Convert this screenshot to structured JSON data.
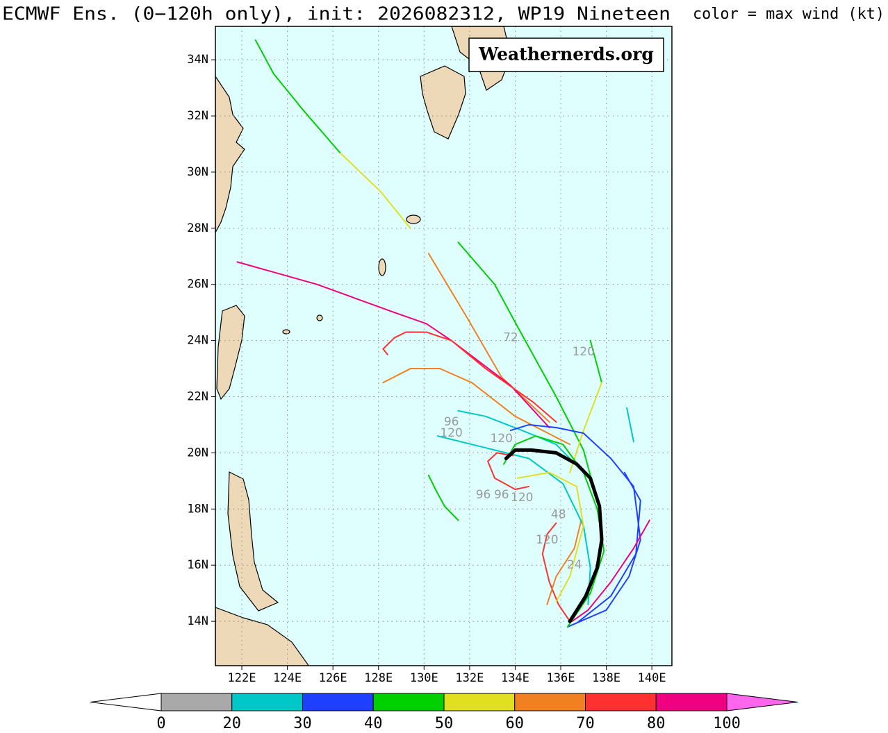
{
  "chart_data": {
    "type": "track-map",
    "title": "ECMWF Ens. (0−120h only), init: 2026082312, WP19 Nineteen",
    "subtitle": "color = max wind (kt)",
    "watermark": "Weathernerds.org",
    "xlim": [
      120.84,
      140.88
    ],
    "ylim": [
      12.42,
      35.19
    ],
    "grid": true,
    "background": "#dfffff",
    "xticks": [
      {
        "value": 122,
        "label": "122E"
      },
      {
        "value": 124,
        "label": "124E"
      },
      {
        "value": 126,
        "label": "126E"
      },
      {
        "value": 128,
        "label": "128E"
      },
      {
        "value": 130,
        "label": "130E"
      },
      {
        "value": 132,
        "label": "132E"
      },
      {
        "value": 134,
        "label": "134E"
      },
      {
        "value": 136,
        "label": "136E"
      },
      {
        "value": 138,
        "label": "138E"
      },
      {
        "value": 140,
        "label": "140E"
      }
    ],
    "yticks": [
      {
        "value": 14,
        "label": "14N"
      },
      {
        "value": 16,
        "label": "16N"
      },
      {
        "value": 18,
        "label": "18N"
      },
      {
        "value": 20,
        "label": "20N"
      },
      {
        "value": 22,
        "label": "22N"
      },
      {
        "value": 24,
        "label": "24N"
      },
      {
        "value": 26,
        "label": "26N"
      },
      {
        "value": 28,
        "label": "28N"
      },
      {
        "value": 30,
        "label": "30N"
      },
      {
        "value": 32,
        "label": "32N"
      },
      {
        "value": 34,
        "label": "34N"
      }
    ],
    "series": [
      {
        "color": "#f08020",
        "x": [
          130.2,
          131.9,
          133.4,
          135.5
        ],
        "y": [
          27.1,
          24.8,
          22.7,
          21.1
        ]
      },
      {
        "color": "#e0e020",
        "x": [
          129.4,
          128.1,
          126.3
        ],
        "y": [
          28.0,
          29.3,
          30.7
        ]
      },
      {
        "color": "#00d000",
        "x": [
          126.3,
          124.7,
          123.4,
          122.6
        ],
        "y": [
          30.7,
          32.2,
          33.5,
          34.7
        ]
      },
      {
        "color": "#f00080",
        "x": [
          121.8,
          125.3,
          128.7,
          130.1,
          131.2,
          133.8,
          135.5
        ],
        "y": [
          26.8,
          26.0,
          25.0,
          24.6,
          24.0,
          22.4,
          20.9
        ]
      },
      {
        "color": "#ff3030",
        "x": [
          128.4,
          128.2,
          128.7,
          129.2,
          130.1,
          131.2,
          132.7,
          134.8,
          135.8
        ],
        "y": [
          23.5,
          23.7,
          24.1,
          24.3,
          24.3,
          24.0,
          23.0,
          21.8,
          21.1
        ]
      },
      {
        "color": "#f08020",
        "x": [
          128.2,
          129.4,
          130.7,
          132.1,
          134.0,
          136.4
        ],
        "y": [
          22.5,
          23.0,
          23.0,
          22.5,
          21.3,
          20.3
        ]
      },
      {
        "color": "#00d000",
        "x": [
          131.5,
          133.1,
          134.1,
          135.8,
          137.0,
          137.6
        ],
        "y": [
          27.5,
          26.0,
          24.5,
          22.0,
          20.1,
          18.3
        ]
      },
      {
        "color": "#00d000",
        "x": [
          137.3,
          137.8
        ],
        "y": [
          24.0,
          22.5
        ]
      },
      {
        "color": "#e0e020",
        "x": [
          137.8,
          137.0,
          136.4
        ],
        "y": [
          22.5,
          20.8,
          19.3
        ]
      },
      {
        "color": "#00c8c8",
        "x": [
          131.5,
          132.7,
          134.3,
          135.8,
          137.0
        ],
        "y": [
          21.5,
          21.3,
          20.8,
          20.3,
          19.3
        ]
      },
      {
        "color": "#00d000",
        "x": [
          130.2,
          130.5,
          130.9,
          131.5
        ],
        "y": [
          19.2,
          18.7,
          18.1,
          17.6
        ]
      },
      {
        "color": "#00c8c8",
        "x": [
          138.9,
          139.2
        ],
        "y": [
          21.6,
          20.4
        ]
      },
      {
        "color": "#2040ff",
        "x": [
          136.3,
          138.0,
          139.0,
          139.5,
          139.2,
          138.2,
          137.0,
          135.8,
          134.6,
          133.8
        ],
        "y": [
          13.8,
          14.4,
          15.6,
          16.9,
          18.8,
          19.8,
          20.7,
          20.9,
          21.0,
          20.8
        ]
      },
      {
        "color": "#2040ff",
        "x": [
          136.8,
          138.2,
          139.3,
          139.5,
          138.8
        ],
        "y": [
          14.0,
          14.9,
          16.4,
          18.3,
          19.3
        ]
      },
      {
        "color": "#f00080",
        "x": [
          139.9,
          139.2,
          138.2,
          137.2,
          136.5
        ],
        "y": [
          17.6,
          16.6,
          15.4,
          14.4,
          14.0
        ]
      },
      {
        "color": "#ff3030",
        "x": [
          136.4,
          135.9,
          135.5,
          135.2,
          135.4,
          135.8
        ],
        "y": [
          14.0,
          14.6,
          15.4,
          16.4,
          17.1,
          17.5
        ]
      },
      {
        "color": "#f08020",
        "x": [
          135.4,
          135.8,
          136.6,
          136.9
        ],
        "y": [
          14.6,
          15.6,
          16.6,
          17.6
        ]
      },
      {
        "color": "#ff3030",
        "x": [
          134.6,
          134.0,
          133.1,
          132.8,
          133.2,
          133.9
        ],
        "y": [
          18.8,
          18.7,
          19.1,
          19.7,
          20.0,
          19.9
        ]
      },
      {
        "color": "#00c8c8",
        "x": [
          130.6,
          132.6,
          134.6,
          136.1,
          137.0,
          137.3,
          137.2
        ],
        "y": [
          20.6,
          20.2,
          19.8,
          18.9,
          17.4,
          15.9,
          14.6
        ]
      },
      {
        "color": "#00d000",
        "x": [
          136.3,
          137.3,
          137.9,
          137.6,
          137.0,
          136.1,
          134.9,
          134.0,
          133.5
        ],
        "y": [
          13.8,
          15.0,
          16.5,
          18.0,
          19.3,
          20.3,
          20.6,
          20.3,
          19.6
        ]
      },
      {
        "color": "#e0e020",
        "x": [
          135.8,
          136.4,
          137.0,
          136.7,
          135.5,
          134.1
        ],
        "y": [
          14.7,
          15.6,
          17.4,
          18.8,
          19.3,
          19.1
        ]
      },
      {
        "color": "#000000",
        "x": [
          136.4,
          137.1,
          137.6,
          137.8,
          137.7,
          137.3,
          136.7,
          135.8,
          134.7,
          134.0,
          133.6
        ],
        "y": [
          14.0,
          14.9,
          15.9,
          16.9,
          18.1,
          19.1,
          19.6,
          20.0,
          20.1,
          20.1,
          19.8
        ]
      }
    ],
    "annotations": [
      {
        "text": "72",
        "x": 133.8,
        "y": 24.1
      },
      {
        "text": "120",
        "x": 137.0,
        "y": 23.6
      },
      {
        "text": "96",
        "x": 131.2,
        "y": 21.1
      },
      {
        "text": "120",
        "x": 131.2,
        "y": 20.7
      },
      {
        "text": "120",
        "x": 133.4,
        "y": 20.5
      },
      {
        "text": "96",
        "x": 132.6,
        "y": 18.5
      },
      {
        "text": "96",
        "x": 133.4,
        "y": 18.5
      },
      {
        "text": "120",
        "x": 134.3,
        "y": 18.4
      },
      {
        "text": "48",
        "x": 135.9,
        "y": 17.8
      },
      {
        "text": "120",
        "x": 135.4,
        "y": 16.9
      },
      {
        "text": "24",
        "x": 136.6,
        "y": 16.0
      }
    ],
    "colorbar": {
      "ticks": [
        0,
        20,
        30,
        40,
        50,
        60,
        70,
        80,
        100
      ],
      "colors": [
        "#a9a9a9",
        "#00c8c8",
        "#2040ff",
        "#00d000",
        "#e0e020",
        "#f08020",
        "#ff3030",
        "#f00080"
      ],
      "under_color": "#ffffff",
      "over_color": "#ff66ee"
    }
  }
}
